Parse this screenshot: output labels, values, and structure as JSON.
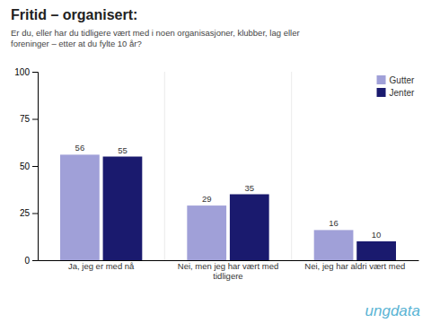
{
  "chart_data": {
    "type": "bar",
    "title": "Fritid – organisert:",
    "subtitle": "Er du, eller har du tidligere vært med i noen organisasjoner, klubber, lag eller\nforeninger – etter at du fylte 10 år?",
    "categories": [
      "Ja, jeg er med nå",
      "Nei, men jeg har vært med tidligere",
      "Nei, jeg har aldri vært med"
    ],
    "series": [
      {
        "name": "Gutter",
        "color": "#a0a0d8",
        "values": [
          56,
          29,
          16
        ]
      },
      {
        "name": "Jenter",
        "color": "#1a1a6e",
        "values": [
          55,
          35,
          10
        ]
      }
    ],
    "ylim": [
      0,
      100
    ],
    "yticks": [
      0,
      25,
      50,
      75,
      100
    ],
    "grid": false,
    "legend": "top-right",
    "data_labels": true,
    "annotations": [
      "ungdata"
    ]
  }
}
